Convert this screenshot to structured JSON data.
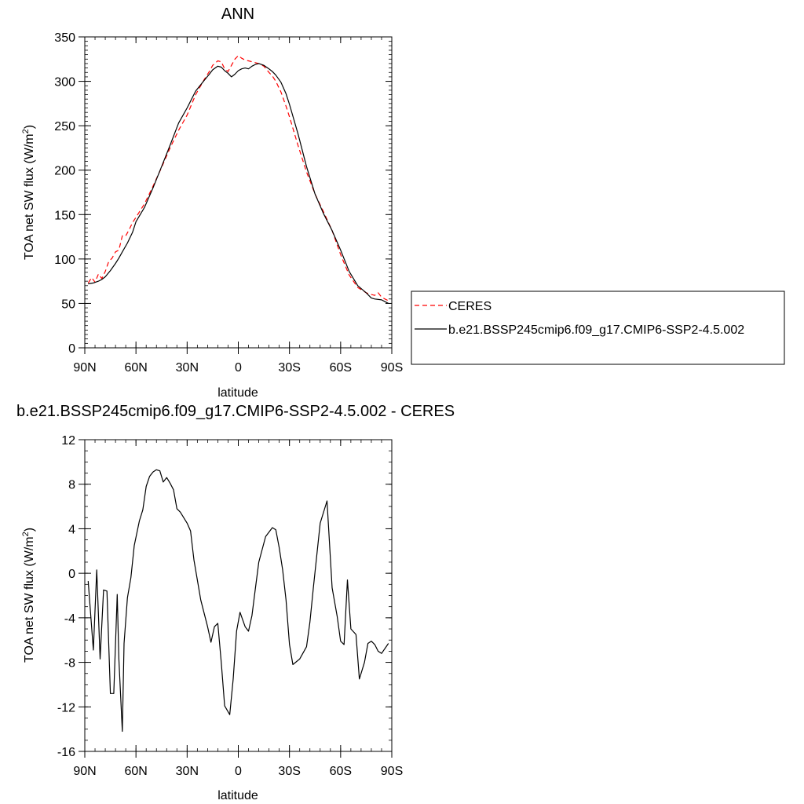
{
  "chart_data": [
    {
      "type": "line",
      "title": "ANN",
      "xlabel": "latitude",
      "ylabel": "TOA net SW flux (W/m",
      "ylabel_sup": "2",
      "ylabel_end": ")",
      "xlim": [
        90,
        -90
      ],
      "ylim": [
        0,
        350
      ],
      "x_ticks": [
        90,
        60,
        30,
        0,
        -30,
        -60,
        -90
      ],
      "x_tick_labels": [
        "90N",
        "60N",
        "30N",
        "0",
        "30S",
        "60S",
        "90S"
      ],
      "y_ticks": [
        0,
        50,
        100,
        150,
        200,
        250,
        300,
        350
      ],
      "y_tick_labels": [
        "0",
        "50",
        "100",
        "150",
        "200",
        "250",
        "300",
        "350"
      ],
      "legend": "right",
      "series": [
        {
          "name": "CERES",
          "color": "#ff0000",
          "dash": "dashed",
          "x": [
            88,
            86,
            84,
            82,
            80,
            78,
            76,
            74,
            72,
            70,
            68,
            66,
            64,
            62,
            60,
            58,
            55,
            50,
            45,
            40,
            35,
            30,
            25,
            20,
            17,
            15,
            12,
            10,
            8,
            6,
            4,
            2,
            0,
            -2,
            -4,
            -6,
            -8,
            -10,
            -12,
            -15,
            -18,
            -20,
            -22,
            -25,
            -28,
            -30,
            -35,
            -40,
            -45,
            -50,
            -55,
            -60,
            -65,
            -70,
            -75,
            -78,
            -80,
            -82,
            -84,
            -86,
            -88
          ],
          "y": [
            73,
            79,
            74,
            83,
            78,
            86,
            97,
            101,
            108,
            110,
            126,
            126,
            133,
            141,
            147,
            153,
            162,
            182,
            203,
            225,
            245,
            262,
            285,
            302,
            311,
            318,
            323,
            322,
            314,
            311,
            318,
            325,
            329,
            326,
            324,
            323,
            322,
            321,
            320,
            317,
            310,
            306,
            300,
            288,
            272,
            260,
            228,
            198,
            173,
            153,
            132,
            105,
            82,
            68,
            62,
            60,
            59,
            62,
            57,
            55,
            53
          ]
        },
        {
          "name": "b.e21.BSSP245cmip6.f09_g17.CMIP6-SSP2-4.5.002",
          "color": "#000000",
          "dash": "solid",
          "x": [
            88,
            85,
            82,
            80,
            78,
            75,
            72,
            70,
            68,
            65,
            62,
            60,
            55,
            50,
            45,
            40,
            35,
            30,
            25,
            20,
            17,
            15,
            12,
            10,
            8,
            6,
            4,
            2,
            0,
            -2,
            -4,
            -6,
            -8,
            -10,
            -12,
            -15,
            -18,
            -20,
            -22,
            -25,
            -28,
            -30,
            -35,
            -40,
            -45,
            -50,
            -55,
            -60,
            -65,
            -70,
            -75,
            -78,
            -80,
            -84,
            -86,
            -88
          ],
          "y": [
            72,
            73,
            75,
            77,
            80,
            87,
            95,
            101,
            108,
            118,
            130,
            142,
            158,
            180,
            204,
            228,
            253,
            270,
            289,
            301,
            308,
            313,
            317,
            316,
            312,
            309,
            305,
            308,
            312,
            314,
            315,
            314,
            317,
            319,
            320,
            318,
            314,
            311,
            307,
            299,
            286,
            274,
            241,
            204,
            173,
            151,
            132,
            110,
            86,
            70,
            62,
            56,
            55,
            54,
            52,
            50
          ]
        }
      ]
    },
    {
      "type": "line",
      "title": "b.e21.BSSP245cmip6.f09_g17.CMIP6-SSP2-4.5.002 - CERES",
      "xlabel": "latitude",
      "ylabel": "TOA net SW flux (W/m",
      "ylabel_sup": "2",
      "ylabel_end": ")",
      "xlim": [
        90,
        -90
      ],
      "ylim": [
        -16,
        12
      ],
      "x_ticks": [
        90,
        60,
        30,
        0,
        -30,
        -60,
        -90
      ],
      "x_tick_labels": [
        "90N",
        "60N",
        "30N",
        "0",
        "30S",
        "60S",
        "90S"
      ],
      "y_ticks": [
        -16,
        -12,
        -8,
        -4,
        0,
        4,
        8,
        12
      ],
      "y_tick_labels": [
        "-16",
        "-12",
        "-8",
        "-4",
        "0",
        "4",
        "8",
        "12"
      ],
      "series": [
        {
          "color": "#000000",
          "dash": "solid",
          "x": [
            88,
            85,
            83,
            81,
            79,
            77,
            75,
            73,
            71,
            70,
            68,
            67,
            65,
            63,
            61,
            58,
            56,
            54,
            52,
            50,
            48,
            46,
            44,
            42,
            40,
            38,
            36,
            34,
            30,
            28,
            26,
            22,
            18,
            16,
            14,
            12,
            10,
            8,
            5,
            3,
            1,
            -1,
            -4,
            -6,
            -8,
            -10,
            -12,
            -16,
            -20,
            -22,
            -24,
            -26,
            -28,
            -30,
            -32,
            -36,
            -40,
            -42,
            -44,
            -48,
            -52,
            -55,
            -58,
            -60,
            -62,
            -64,
            -66,
            -69,
            -71,
            -74,
            -76,
            -78,
            -80,
            -82,
            -84,
            -88
          ],
          "y": [
            -0.7,
            -6.9,
            0.3,
            -7.7,
            -1.5,
            -1.6,
            -10.8,
            -10.8,
            -1.9,
            -7.7,
            -14.2,
            -6.3,
            -2.2,
            -0.4,
            2.5,
            4.7,
            5.7,
            7.8,
            8.7,
            9.1,
            9.3,
            9.2,
            8.2,
            8.6,
            8.1,
            7.5,
            5.8,
            5.5,
            4.5,
            3.8,
            1.2,
            -2.4,
            -4.8,
            -6.2,
            -4.8,
            -4.5,
            -8.0,
            -11.9,
            -12.7,
            -9.5,
            -5.2,
            -3.5,
            -4.8,
            -5.2,
            -3.8,
            -1.4,
            1.0,
            3.3,
            4.1,
            3.9,
            2.3,
            0.3,
            -2.4,
            -6.4,
            -8.2,
            -7.7,
            -6.6,
            -4.4,
            -1.3,
            4.5,
            6.5,
            -1.3,
            -3.9,
            -6.1,
            -6.4,
            -0.6,
            -5.0,
            -5.5,
            -9.5,
            -8.0,
            -6.3,
            -6.1,
            -6.4,
            -7.0,
            -7.2,
            -6.3
          ]
        }
      ]
    }
  ]
}
